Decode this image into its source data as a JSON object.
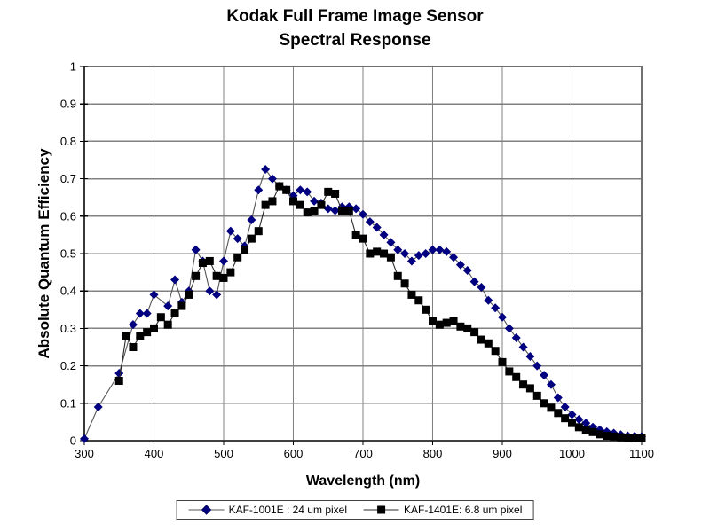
{
  "title": {
    "line1": "Kodak Full Frame Image Sensor",
    "line2": "Spectral Response"
  },
  "axes": {
    "x_label": "Wavelength (nm)",
    "y_label": "Absolute Quantum Efficiency"
  },
  "legend": {
    "items": [
      {
        "label": "KAF-1001E : 24 um pixel",
        "marker": "diamond",
        "color": "#000080"
      },
      {
        "label": "KAF-1401E: 6.8 um pixel",
        "marker": "square",
        "color": "#000000"
      }
    ]
  },
  "colors": {
    "background": "#ffffff",
    "grid": "#808080",
    "frame": "#707070",
    "axis": "#404040",
    "connector1": "#555555",
    "connector2": "#2a2a2a",
    "series1": "#000080",
    "series2": "#000000"
  },
  "chart_data": {
    "type": "line",
    "title": "Kodak Full Frame Image Sensor Spectral Response",
    "xlabel": "Wavelength (nm)",
    "ylabel": "Absolute Quantum Efficiency",
    "xlim": [
      300,
      1100
    ],
    "ylim": [
      0,
      1
    ],
    "xticks": [
      300,
      400,
      500,
      600,
      700,
      800,
      900,
      1000,
      1100
    ],
    "yticks": [
      0,
      0.1,
      0.2,
      0.3,
      0.4,
      0.5,
      0.6,
      0.7,
      0.8,
      0.9,
      1
    ],
    "grid": true,
    "legend_position": "bottom",
    "series": [
      {
        "name": "KAF-1001E : 24 um pixel",
        "marker": "diamond",
        "color": "#000080",
        "line_color": "#555555",
        "points": [
          [
            300,
            0.005
          ],
          [
            320,
            0.09
          ],
          [
            350,
            0.18
          ],
          [
            370,
            0.31
          ],
          [
            380,
            0.34
          ],
          [
            390,
            0.34
          ],
          [
            400,
            0.39
          ],
          [
            420,
            0.36
          ],
          [
            430,
            0.43
          ],
          [
            440,
            0.37
          ],
          [
            450,
            0.4
          ],
          [
            460,
            0.51
          ],
          [
            470,
            0.48
          ],
          [
            480,
            0.4
          ],
          [
            490,
            0.39
          ],
          [
            500,
            0.48
          ],
          [
            510,
            0.56
          ],
          [
            520,
            0.54
          ],
          [
            530,
            0.52
          ],
          [
            540,
            0.59
          ],
          [
            550,
            0.67
          ],
          [
            560,
            0.725
          ],
          [
            570,
            0.7
          ],
          [
            580,
            0.68
          ],
          [
            590,
            0.67
          ],
          [
            600,
            0.655
          ],
          [
            610,
            0.67
          ],
          [
            620,
            0.665
          ],
          [
            630,
            0.64
          ],
          [
            640,
            0.635
          ],
          [
            650,
            0.62
          ],
          [
            660,
            0.615
          ],
          [
            670,
            0.625
          ],
          [
            680,
            0.625
          ],
          [
            690,
            0.62
          ],
          [
            700,
            0.605
          ],
          [
            710,
            0.585
          ],
          [
            720,
            0.57
          ],
          [
            730,
            0.55
          ],
          [
            740,
            0.53
          ],
          [
            750,
            0.51
          ],
          [
            760,
            0.5
          ],
          [
            770,
            0.48
          ],
          [
            780,
            0.495
          ],
          [
            790,
            0.5
          ],
          [
            800,
            0.51
          ],
          [
            810,
            0.51
          ],
          [
            820,
            0.505
          ],
          [
            830,
            0.49
          ],
          [
            840,
            0.47
          ],
          [
            850,
            0.455
          ],
          [
            860,
            0.425
          ],
          [
            870,
            0.41
          ],
          [
            880,
            0.375
          ],
          [
            890,
            0.355
          ],
          [
            900,
            0.33
          ],
          [
            910,
            0.3
          ],
          [
            920,
            0.275
          ],
          [
            930,
            0.25
          ],
          [
            940,
            0.225
          ],
          [
            950,
            0.2
          ],
          [
            960,
            0.175
          ],
          [
            970,
            0.15
          ],
          [
            980,
            0.115
          ],
          [
            990,
            0.09
          ],
          [
            1000,
            0.07
          ],
          [
            1010,
            0.057
          ],
          [
            1020,
            0.047
          ],
          [
            1030,
            0.036
          ],
          [
            1040,
            0.029
          ],
          [
            1050,
            0.024
          ],
          [
            1060,
            0.02
          ],
          [
            1070,
            0.016
          ],
          [
            1080,
            0.013
          ],
          [
            1090,
            0.012
          ],
          [
            1100,
            0.011
          ]
        ]
      },
      {
        "name": "KAF-1401E: 6.8 um pixel",
        "marker": "square",
        "color": "#000000",
        "line_color": "#2a2a2a",
        "points": [
          [
            350,
            0.16
          ],
          [
            360,
            0.28
          ],
          [
            370,
            0.25
          ],
          [
            380,
            0.28
          ],
          [
            390,
            0.29
          ],
          [
            400,
            0.3
          ],
          [
            410,
            0.33
          ],
          [
            420,
            0.31
          ],
          [
            430,
            0.34
          ],
          [
            440,
            0.36
          ],
          [
            450,
            0.39
          ],
          [
            460,
            0.44
          ],
          [
            470,
            0.475
          ],
          [
            480,
            0.48
          ],
          [
            490,
            0.44
          ],
          [
            500,
            0.435
          ],
          [
            510,
            0.45
          ],
          [
            520,
            0.49
          ],
          [
            530,
            0.51
          ],
          [
            540,
            0.54
          ],
          [
            550,
            0.56
          ],
          [
            560,
            0.63
          ],
          [
            570,
            0.64
          ],
          [
            580,
            0.68
          ],
          [
            590,
            0.67
          ],
          [
            600,
            0.64
          ],
          [
            610,
            0.63
          ],
          [
            620,
            0.61
          ],
          [
            630,
            0.615
          ],
          [
            640,
            0.63
          ],
          [
            650,
            0.665
          ],
          [
            660,
            0.66
          ],
          [
            670,
            0.615
          ],
          [
            680,
            0.615
          ],
          [
            690,
            0.55
          ],
          [
            700,
            0.54
          ],
          [
            710,
            0.5
          ],
          [
            720,
            0.505
          ],
          [
            730,
            0.5
          ],
          [
            740,
            0.49
          ],
          [
            750,
            0.44
          ],
          [
            760,
            0.42
          ],
          [
            770,
            0.39
          ],
          [
            780,
            0.375
          ],
          [
            790,
            0.35
          ],
          [
            800,
            0.32
          ],
          [
            810,
            0.31
          ],
          [
            820,
            0.315
          ],
          [
            830,
            0.32
          ],
          [
            840,
            0.305
          ],
          [
            850,
            0.3
          ],
          [
            860,
            0.29
          ],
          [
            870,
            0.27
          ],
          [
            880,
            0.26
          ],
          [
            890,
            0.24
          ],
          [
            900,
            0.21
          ],
          [
            910,
            0.185
          ],
          [
            920,
            0.17
          ],
          [
            930,
            0.15
          ],
          [
            940,
            0.14
          ],
          [
            950,
            0.12
          ],
          [
            960,
            0.1
          ],
          [
            970,
            0.088
          ],
          [
            980,
            0.074
          ],
          [
            990,
            0.06
          ],
          [
            1000,
            0.047
          ],
          [
            1010,
            0.036
          ],
          [
            1020,
            0.028
          ],
          [
            1030,
            0.023
          ],
          [
            1040,
            0.017
          ],
          [
            1050,
            0.013
          ],
          [
            1060,
            0.011
          ],
          [
            1070,
            0.009
          ],
          [
            1080,
            0.008
          ],
          [
            1090,
            0.007
          ],
          [
            1100,
            0.006
          ]
        ]
      }
    ]
  }
}
